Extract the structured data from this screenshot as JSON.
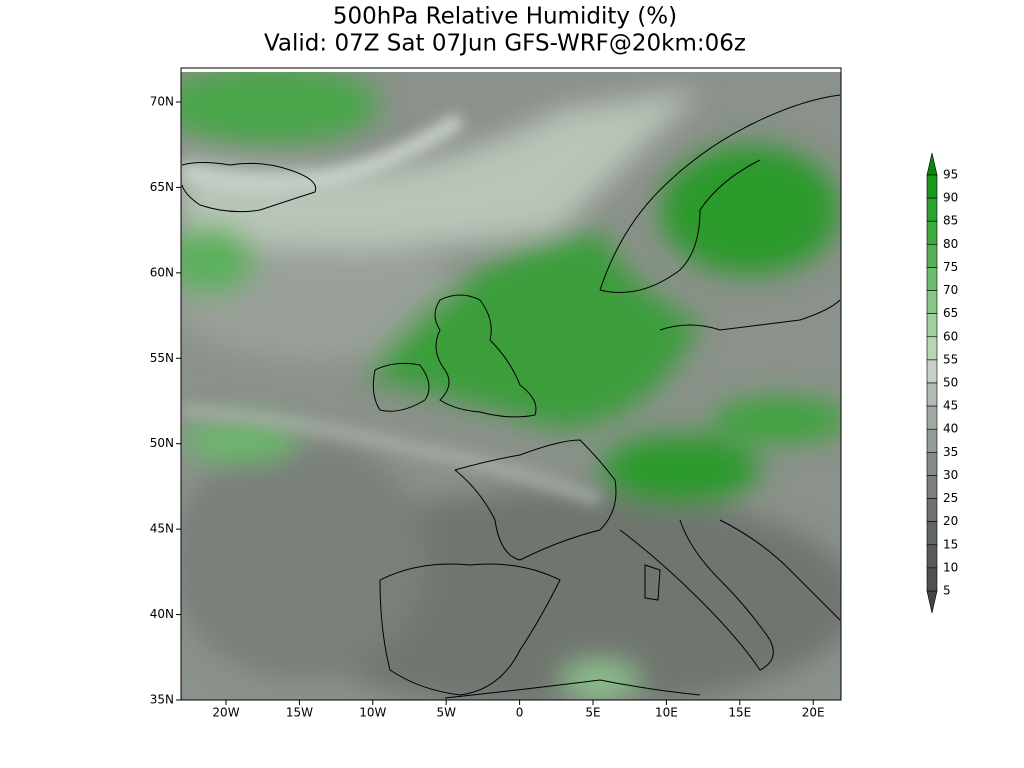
{
  "header": {
    "title": "500hPa Relative Humidity (%)",
    "subtitle": "Valid: 07Z Sat 07Jun GFS-WRF@20km:06z"
  },
  "map": {
    "lat_labels": [
      "35N",
      "40N",
      "45N",
      "50N",
      "55N",
      "60N",
      "65N",
      "70N"
    ],
    "lon_labels": [
      "20W",
      "15W",
      "10W",
      "5W",
      "0",
      "5E",
      "10E",
      "15E",
      "20E"
    ]
  },
  "colorbar": {
    "labels": [
      "95",
      "90",
      "85",
      "80",
      "75",
      "70",
      "65",
      "60",
      "55",
      "50",
      "45",
      "40",
      "35",
      "30",
      "25",
      "20",
      "15",
      "10",
      "5"
    ]
  }
}
